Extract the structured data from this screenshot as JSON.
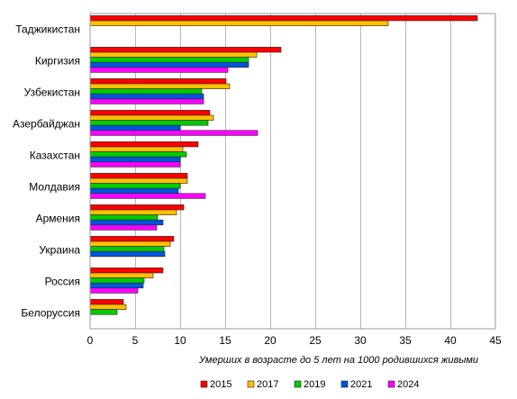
{
  "chart_data": {
    "type": "bar",
    "orientation": "horizontal",
    "categories": [
      "Таджикистан",
      "Киргизия",
      "Узбекистан",
      "Азербайджан",
      "Казахстан",
      "Молдавия",
      "Армения",
      "Украина",
      "Россия",
      "Белоруссия"
    ],
    "series": [
      {
        "name": "2015",
        "color": "#ff0000",
        "values": [
          43,
          21.2,
          15.1,
          13.3,
          12,
          10.8,
          10.4,
          9.3,
          8.1,
          3.7
        ]
      },
      {
        "name": "2017",
        "color": "#ffc000",
        "values": [
          33.1,
          18.5,
          15.5,
          13.7,
          10.3,
          10.8,
          9.6,
          8.9,
          7,
          4
        ]
      },
      {
        "name": "2019",
        "color": "#00cc00",
        "values": [
          null,
          17.6,
          12.4,
          13.1,
          10.7,
          10,
          7.5,
          8.2,
          6,
          3
        ]
      },
      {
        "name": "2021",
        "color": "#0055dd",
        "values": [
          null,
          17.6,
          12.6,
          10,
          10,
          9.8,
          8.1,
          8.3,
          5.9,
          null
        ]
      },
      {
        "name": "2024",
        "color": "#ff00ff",
        "values": [
          null,
          15.3,
          12.6,
          18.6,
          10,
          12.8,
          7.4,
          null,
          5.3,
          null
        ]
      }
    ],
    "xlabel": "Умерших в возрасте до 5 лет на 1000 родившихся живыми",
    "xlim": [
      0,
      45
    ],
    "xticks": [
      "0",
      "5",
      "10",
      "15",
      "20",
      "25",
      "30",
      "35",
      "40",
      "45"
    ],
    "grid": "vertical",
    "legend": "bottom"
  }
}
